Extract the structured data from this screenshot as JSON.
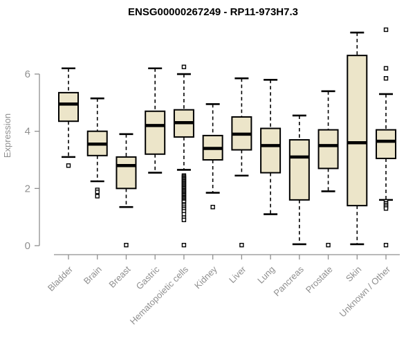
{
  "chart_data": {
    "type": "boxplot",
    "title": "ENSG00000267249 - RP11-973H7.3",
    "xlabel": "",
    "ylabel": "Expression",
    "ylim": [
      0,
      7.6
    ],
    "y_ticks": [
      0,
      2,
      4,
      6
    ],
    "grid": "off",
    "legend": "none",
    "categories": [
      "Bladder",
      "Brain",
      "Breast",
      "Gastric",
      "Hematopoietic cells",
      "Kidney",
      "Liver",
      "Lung",
      "Pancreas",
      "Prostate",
      "Skin",
      "Unknown / Other"
    ],
    "series": [
      {
        "name": "Bladder",
        "low": 3.1,
        "q1": 4.35,
        "median": 4.95,
        "q3": 5.35,
        "high": 6.2,
        "outliers": [
          2.8
        ]
      },
      {
        "name": "Brain",
        "low": 2.25,
        "q1": 3.15,
        "median": 3.55,
        "q3": 4.0,
        "high": 5.15,
        "outliers": [
          1.95,
          1.88,
          1.73
        ]
      },
      {
        "name": "Breast",
        "low": 1.35,
        "q1": 2.0,
        "median": 2.8,
        "q3": 3.1,
        "high": 3.9,
        "outliers": [
          0.02
        ]
      },
      {
        "name": "Gastric",
        "low": 2.55,
        "q1": 3.2,
        "median": 4.2,
        "q3": 4.7,
        "high": 6.2,
        "outliers": []
      },
      {
        "name": "Hematopoietic cells",
        "low": 2.65,
        "q1": 3.8,
        "median": 4.3,
        "q3": 4.75,
        "high": 6.0,
        "outliers": [
          6.25,
          2.45,
          2.41,
          2.37,
          2.33,
          2.29,
          2.25,
          2.21,
          2.17,
          2.13,
          2.09,
          2.05,
          2.01,
          1.97,
          1.93,
          1.89,
          1.85,
          1.81,
          1.77,
          1.73,
          1.69,
          1.65,
          1.61,
          1.57,
          1.53,
          1.45,
          1.4,
          1.33,
          1.27,
          1.2,
          1.1,
          0.98,
          0.9,
          0.02
        ]
      },
      {
        "name": "Kidney",
        "low": 1.85,
        "q1": 3.0,
        "median": 3.4,
        "q3": 3.85,
        "high": 4.95,
        "outliers": [
          1.35
        ]
      },
      {
        "name": "Liver",
        "low": 2.45,
        "q1": 3.35,
        "median": 3.9,
        "q3": 4.5,
        "high": 5.85,
        "outliers": [
          0.02
        ]
      },
      {
        "name": "Lung",
        "low": 1.1,
        "q1": 2.55,
        "median": 3.5,
        "q3": 4.1,
        "high": 5.8,
        "outliers": []
      },
      {
        "name": "Pancreas",
        "low": 0.05,
        "q1": 1.6,
        "median": 3.1,
        "q3": 3.7,
        "high": 4.55,
        "outliers": []
      },
      {
        "name": "Prostate",
        "low": 1.9,
        "q1": 2.7,
        "median": 3.5,
        "q3": 4.05,
        "high": 5.4,
        "outliers": [
          0.02
        ]
      },
      {
        "name": "Skin",
        "low": 0.05,
        "q1": 1.4,
        "median": 3.6,
        "q3": 6.65,
        "high": 7.45,
        "outliers": []
      },
      {
        "name": "Unknown / Other",
        "low": 1.6,
        "q1": 3.05,
        "median": 3.65,
        "q3": 4.05,
        "high": 5.3,
        "outliers": [
          7.55,
          6.2,
          5.85,
          1.55,
          1.48,
          1.42,
          1.36,
          1.3,
          0.02
        ]
      }
    ],
    "colors": {
      "box_fill": "#ece5c9",
      "box_stroke": "#000000",
      "axis": "#8f8f8f",
      "tick_label": "#8f8f8f",
      "title": "#000000",
      "background": "#ffffff"
    }
  }
}
